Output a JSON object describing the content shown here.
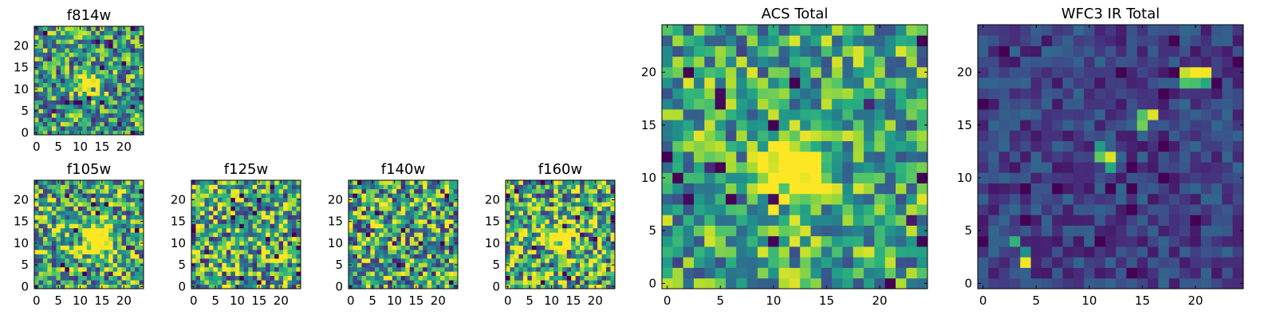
{
  "figure": {
    "colormap": "viridis",
    "colors": {
      "low": "#440154",
      "high": "#fde725",
      "axes": "#000000"
    }
  },
  "chart_data": [
    {
      "type": "heatmap",
      "title": "f814w",
      "xlabel": "",
      "ylabel": "",
      "grid_size": [
        25,
        25
      ],
      "xlim": [
        -0.5,
        24.5
      ],
      "ylim": [
        -0.5,
        24.5
      ],
      "xticks": [
        0,
        5,
        10,
        15,
        20
      ],
      "yticks": [
        0,
        5,
        10,
        15,
        20
      ],
      "features": [
        {
          "type": "bright-source",
          "x": 12,
          "y": 11,
          "radius": 1.8
        }
      ],
      "seed": 11,
      "base_level": 0.55,
      "noise_level": 0.42,
      "colormap": "viridis",
      "grid": false
    },
    {
      "type": "heatmap",
      "title": "f105w",
      "xlabel": "",
      "ylabel": "",
      "grid_size": [
        25,
        25
      ],
      "xlim": [
        -0.5,
        24.5
      ],
      "ylim": [
        -0.5,
        24.5
      ],
      "xticks": [
        0,
        5,
        10,
        15,
        20
      ],
      "yticks": [
        0,
        5,
        10,
        15,
        20
      ],
      "features": [
        {
          "type": "bright-source",
          "x": 14,
          "y": 11,
          "radius": 2.5
        }
      ],
      "seed": 23,
      "base_level": 0.6,
      "noise_level": 0.45,
      "colormap": "viridis",
      "grid": false
    },
    {
      "type": "heatmap",
      "title": "f125w",
      "xlabel": "",
      "ylabel": "",
      "grid_size": [
        25,
        25
      ],
      "xlim": [
        -0.5,
        24.5
      ],
      "ylim": [
        -0.5,
        24.5
      ],
      "xticks": [
        0,
        5,
        10,
        15,
        20
      ],
      "yticks": [
        0,
        5,
        10,
        15,
        20
      ],
      "features": [],
      "seed": 37,
      "base_level": 0.62,
      "noise_level": 0.5,
      "colormap": "viridis",
      "grid": false
    },
    {
      "type": "heatmap",
      "title": "f140w",
      "xlabel": "",
      "ylabel": "",
      "grid_size": [
        25,
        25
      ],
      "xlim": [
        -0.5,
        24.5
      ],
      "ylim": [
        -0.5,
        24.5
      ],
      "xticks": [
        0,
        5,
        10,
        15,
        20
      ],
      "yticks": [
        0,
        5,
        10,
        15,
        20
      ],
      "features": [],
      "seed": 51,
      "base_level": 0.6,
      "noise_level": 0.5,
      "colormap": "viridis",
      "grid": false
    },
    {
      "type": "heatmap",
      "title": "f160w",
      "xlabel": "",
      "ylabel": "",
      "grid_size": [
        25,
        25
      ],
      "xlim": [
        -0.5,
        24.5
      ],
      "ylim": [
        -0.5,
        24.5
      ],
      "xticks": [
        0,
        5,
        10,
        15,
        20
      ],
      "yticks": [
        0,
        5,
        10,
        15,
        20
      ],
      "features": [
        {
          "type": "bright-source",
          "x": 13,
          "y": 11,
          "radius": 2.0
        }
      ],
      "seed": 67,
      "base_level": 0.62,
      "noise_level": 0.48,
      "colormap": "viridis",
      "grid": false
    },
    {
      "type": "heatmap",
      "title": "ACS Total",
      "xlabel": "",
      "ylabel": "",
      "grid_size": [
        25,
        25
      ],
      "xlim": [
        -0.5,
        24.5
      ],
      "ylim": [
        -0.5,
        24.5
      ],
      "xticks": [
        0,
        5,
        10,
        15,
        20
      ],
      "yticks": [
        0,
        5,
        10,
        15,
        20
      ],
      "features": [
        {
          "type": "bright-source",
          "x": 12,
          "y": 11,
          "radius": 2.0
        }
      ],
      "seed": 89,
      "base_level": 0.6,
      "noise_level": 0.36,
      "colormap": "viridis",
      "grid": false
    },
    {
      "type": "heatmap",
      "title": "WFC3 IR Total",
      "xlabel": "",
      "ylabel": "",
      "grid_size": [
        25,
        25
      ],
      "xlim": [
        -0.5,
        24.5
      ],
      "ylim": [
        -0.5,
        24.5
      ],
      "xticks": [
        0,
        5,
        10,
        15,
        20
      ],
      "yticks": [
        0,
        5,
        10,
        15,
        20
      ],
      "features": [
        {
          "type": "bright-pixels",
          "pixels": [
            [
              19,
              20,
              0.92
            ],
            [
              20,
              20,
              1.0
            ],
            [
              21,
              20,
              0.98
            ],
            [
              19,
              19,
              0.72
            ],
            [
              20,
              19,
              0.7
            ],
            [
              21,
              19,
              0.6
            ],
            [
              16,
              16,
              0.95
            ],
            [
              15,
              16,
              0.72
            ],
            [
              15,
              15,
              0.78
            ],
            [
              12,
              12,
              0.95
            ],
            [
              11,
              12,
              0.75
            ],
            [
              11,
              13,
              0.55
            ],
            [
              12,
              11,
              0.6
            ],
            [
              4,
              2,
              0.98
            ],
            [
              3,
              4,
              0.65
            ],
            [
              4,
              3,
              0.5
            ]
          ]
        }
      ],
      "seed": 113,
      "base_level": 0.2,
      "noise_level": 0.14,
      "colormap": "viridis",
      "grid": false
    }
  ]
}
